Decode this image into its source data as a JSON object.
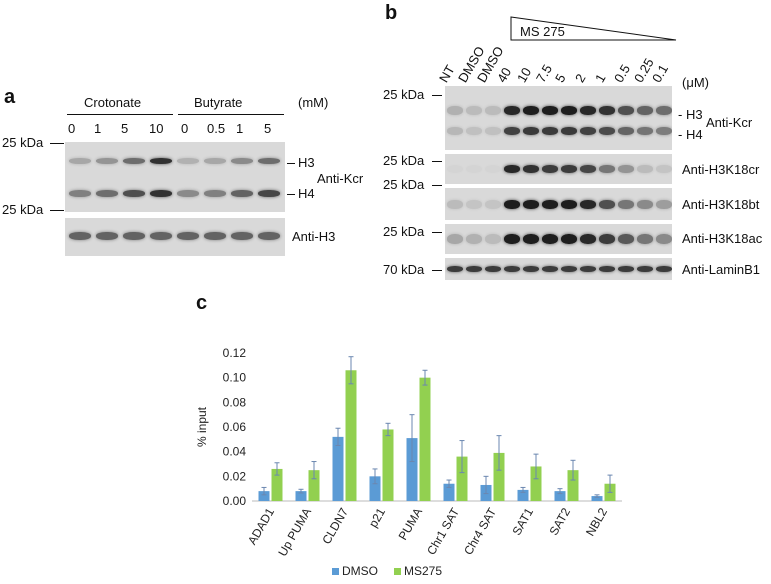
{
  "panel_a": {
    "label": "a",
    "group1": "Crotonate",
    "group2": "Butyrate",
    "unit": "(mM)",
    "lanes": [
      "0",
      "1",
      "5",
      "10",
      "0",
      "0.5",
      "1",
      "5"
    ],
    "marker1": "25 kDa",
    "marker2": "25 kDa",
    "h3": "H3",
    "h4": "H4",
    "antibody1": "Anti-Kcr",
    "antibody2": "Anti-H3"
  },
  "panel_b": {
    "label": "b",
    "treatment": "MS 275",
    "unit": "(μM)",
    "lanes": [
      "NT",
      "DMSO",
      "DMSO",
      "40",
      "10",
      "7.5",
      "5",
      "2",
      "1",
      "0.5",
      "0.25",
      "0.1"
    ],
    "h3": "- H3",
    "h4": "- H4",
    "markers": [
      "25 kDa",
      "25 kDa",
      "25 kDa",
      "25 kDa",
      "70 kDa"
    ],
    "antibodies": [
      "Anti-Kcr",
      "Anti-H3K18cr",
      "Anti-H3K18bt",
      "Anti-H3K18ac",
      "Anti-LaminB1"
    ]
  },
  "panel_c": {
    "label": "c",
    "legend": [
      "DMSO",
      "MS275"
    ]
  },
  "chart_data": {
    "type": "bar",
    "ylabel": "% input",
    "xlabel": "",
    "ylim": [
      0,
      0.12
    ],
    "yticks": [
      "0.00",
      "0.02",
      "0.04",
      "0.06",
      "0.08",
      "0.10",
      "0.12"
    ],
    "grid": false,
    "legend_position": "bottom",
    "categories": [
      "ADAD1",
      "Up PUMA",
      "CLDN7",
      "p21",
      "PUMA",
      "Chr1 SAT",
      "Chr4 SAT",
      "SAT1",
      "SAT2",
      "NBL2"
    ],
    "series": [
      {
        "name": "DMSO",
        "color": "#5b9bd5",
        "values": [
          0.008,
          0.008,
          0.052,
          0.02,
          0.051,
          0.014,
          0.013,
          0.009,
          0.008,
          0.004
        ],
        "errors": [
          0.003,
          0.0015,
          0.007,
          0.006,
          0.019,
          0.003,
          0.007,
          0.002,
          0.002,
          0.001
        ]
      },
      {
        "name": "MS275",
        "color": "#92d050",
        "values": [
          0.026,
          0.025,
          0.106,
          0.058,
          0.1,
          0.036,
          0.039,
          0.028,
          0.025,
          0.014
        ],
        "errors": [
          0.005,
          0.007,
          0.011,
          0.005,
          0.006,
          0.013,
          0.014,
          0.01,
          0.008,
          0.007
        ]
      }
    ]
  }
}
